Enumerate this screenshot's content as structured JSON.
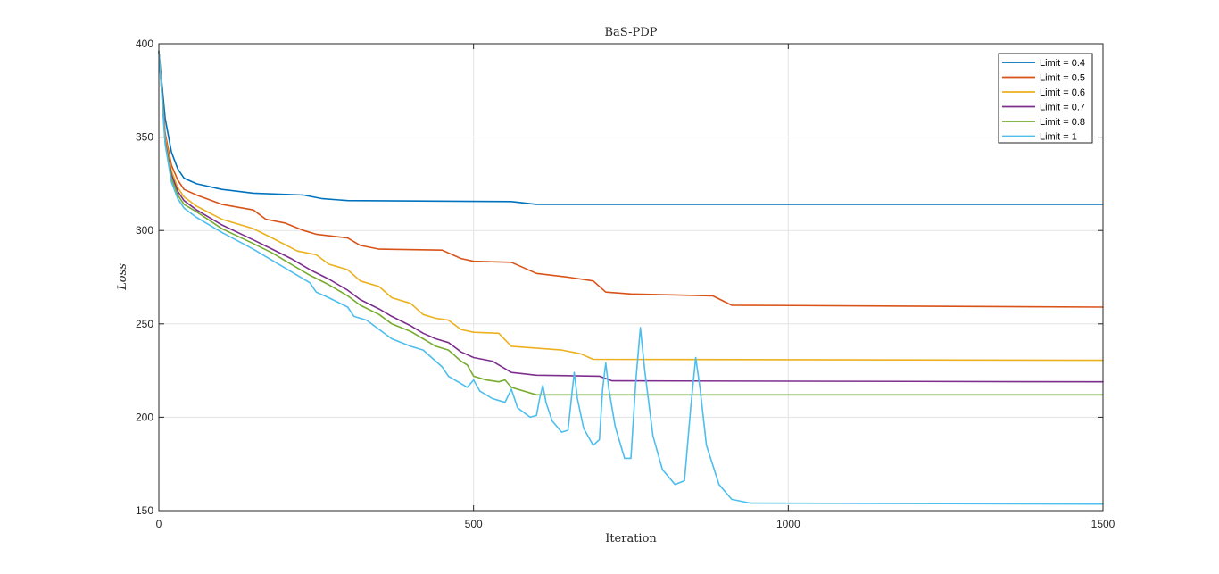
{
  "chart_data": {
    "type": "line",
    "title": "BaS-PDP",
    "xlabel": "Iteration",
    "ylabel": "Loss",
    "xlim": [
      0,
      1500
    ],
    "ylim": [
      150,
      400
    ],
    "xticks": [
      0,
      500,
      1000,
      1500
    ],
    "yticks": [
      150,
      200,
      250,
      300,
      350,
      400
    ],
    "grid": true,
    "legend_position": "top-right",
    "series": [
      {
        "name": "Limit = 0.4",
        "color": "#0072BD",
        "points": [
          [
            0,
            396
          ],
          [
            10,
            360
          ],
          [
            20,
            342
          ],
          [
            30,
            333
          ],
          [
            40,
            328
          ],
          [
            60,
            325
          ],
          [
            100,
            322
          ],
          [
            150,
            320
          ],
          [
            230,
            319
          ],
          [
            260,
            317
          ],
          [
            300,
            316
          ],
          [
            560,
            315.5
          ],
          [
            600,
            314
          ],
          [
            650,
            314
          ],
          [
            1500,
            314
          ]
        ]
      },
      {
        "name": "Limit = 0.5",
        "color": "#D95319",
        "points": [
          [
            0,
            396
          ],
          [
            10,
            352
          ],
          [
            20,
            335
          ],
          [
            30,
            327
          ],
          [
            40,
            322
          ],
          [
            60,
            319
          ],
          [
            100,
            314
          ],
          [
            150,
            311
          ],
          [
            170,
            306
          ],
          [
            200,
            304
          ],
          [
            230,
            300
          ],
          [
            250,
            298
          ],
          [
            300,
            296
          ],
          [
            320,
            292
          ],
          [
            350,
            290
          ],
          [
            450,
            289.5
          ],
          [
            480,
            285
          ],
          [
            500,
            283.5
          ],
          [
            560,
            283
          ],
          [
            600,
            277
          ],
          [
            650,
            275
          ],
          [
            690,
            273
          ],
          [
            710,
            267
          ],
          [
            750,
            266
          ],
          [
            880,
            265
          ],
          [
            910,
            260
          ],
          [
            1500,
            259
          ]
        ]
      },
      {
        "name": "Limit = 0.6",
        "color": "#EDB120",
        "points": [
          [
            0,
            396
          ],
          [
            10,
            350
          ],
          [
            20,
            332
          ],
          [
            30,
            323
          ],
          [
            40,
            318
          ],
          [
            60,
            313
          ],
          [
            100,
            306
          ],
          [
            150,
            301
          ],
          [
            180,
            296
          ],
          [
            220,
            289
          ],
          [
            250,
            287
          ],
          [
            270,
            282
          ],
          [
            300,
            279
          ],
          [
            320,
            273
          ],
          [
            350,
            270
          ],
          [
            370,
            264
          ],
          [
            400,
            261
          ],
          [
            420,
            255
          ],
          [
            440,
            253
          ],
          [
            460,
            252
          ],
          [
            480,
            247
          ],
          [
            500,
            245.5
          ],
          [
            540,
            245
          ],
          [
            560,
            238
          ],
          [
            640,
            236
          ],
          [
            670,
            234
          ],
          [
            690,
            231
          ],
          [
            1500,
            230.5
          ]
        ]
      },
      {
        "name": "Limit = 0.7",
        "color": "#7E2F8E",
        "points": [
          [
            0,
            396
          ],
          [
            10,
            348
          ],
          [
            20,
            330
          ],
          [
            30,
            321
          ],
          [
            40,
            316
          ],
          [
            60,
            311
          ],
          [
            100,
            303
          ],
          [
            150,
            295
          ],
          [
            180,
            290
          ],
          [
            210,
            285
          ],
          [
            240,
            279
          ],
          [
            270,
            274
          ],
          [
            300,
            268
          ],
          [
            320,
            263
          ],
          [
            350,
            258
          ],
          [
            370,
            254
          ],
          [
            400,
            249
          ],
          [
            420,
            245
          ],
          [
            440,
            242
          ],
          [
            460,
            240
          ],
          [
            480,
            235
          ],
          [
            500,
            232
          ],
          [
            530,
            230
          ],
          [
            560,
            224
          ],
          [
            600,
            222.5
          ],
          [
            700,
            222
          ],
          [
            720,
            219.5
          ],
          [
            1500,
            219
          ]
        ]
      },
      {
        "name": "Limit = 0.8",
        "color": "#77AC30",
        "points": [
          [
            0,
            396
          ],
          [
            10,
            347
          ],
          [
            20,
            328
          ],
          [
            30,
            319
          ],
          [
            40,
            314
          ],
          [
            60,
            310
          ],
          [
            100,
            301
          ],
          [
            150,
            293
          ],
          [
            180,
            288
          ],
          [
            210,
            282
          ],
          [
            240,
            276
          ],
          [
            270,
            271
          ],
          [
            300,
            265
          ],
          [
            320,
            260
          ],
          [
            350,
            255
          ],
          [
            370,
            250
          ],
          [
            400,
            246
          ],
          [
            420,
            242
          ],
          [
            440,
            238
          ],
          [
            460,
            236
          ],
          [
            480,
            230
          ],
          [
            490,
            228
          ],
          [
            500,
            222
          ],
          [
            520,
            220
          ],
          [
            540,
            219
          ],
          [
            550,
            220
          ],
          [
            560,
            216
          ],
          [
            600,
            212
          ],
          [
            1500,
            212
          ]
        ]
      },
      {
        "name": "Limit = 1",
        "color": "#4DBEEE",
        "points": [
          [
            0,
            396
          ],
          [
            10,
            346
          ],
          [
            20,
            326
          ],
          [
            30,
            317
          ],
          [
            40,
            312
          ],
          [
            60,
            307
          ],
          [
            100,
            299
          ],
          [
            150,
            290
          ],
          [
            180,
            284
          ],
          [
            210,
            278
          ],
          [
            240,
            272
          ],
          [
            250,
            267
          ],
          [
            270,
            264
          ],
          [
            300,
            259
          ],
          [
            310,
            254
          ],
          [
            330,
            252
          ],
          [
            350,
            247
          ],
          [
            370,
            242
          ],
          [
            400,
            238
          ],
          [
            420,
            236
          ],
          [
            440,
            230
          ],
          [
            450,
            227
          ],
          [
            460,
            222
          ],
          [
            480,
            218
          ],
          [
            490,
            216
          ],
          [
            500,
            220
          ],
          [
            510,
            214
          ],
          [
            530,
            210
          ],
          [
            550,
            208
          ],
          [
            560,
            215
          ],
          [
            570,
            205
          ],
          [
            590,
            200
          ],
          [
            600,
            201
          ],
          [
            605,
            210
          ],
          [
            610,
            217
          ],
          [
            615,
            208
          ],
          [
            625,
            198
          ],
          [
            640,
            192
          ],
          [
            650,
            193
          ],
          [
            657,
            215
          ],
          [
            660,
            224
          ],
          [
            665,
            210
          ],
          [
            675,
            194
          ],
          [
            690,
            185
          ],
          [
            700,
            188
          ],
          [
            705,
            215
          ],
          [
            710,
            229
          ],
          [
            715,
            215
          ],
          [
            725,
            195
          ],
          [
            740,
            178
          ],
          [
            750,
            178
          ],
          [
            758,
            220
          ],
          [
            765,
            248
          ],
          [
            772,
            225
          ],
          [
            785,
            190
          ],
          [
            800,
            172
          ],
          [
            820,
            164
          ],
          [
            835,
            166
          ],
          [
            845,
            205
          ],
          [
            853,
            232
          ],
          [
            860,
            215
          ],
          [
            870,
            185
          ],
          [
            890,
            164
          ],
          [
            910,
            156
          ],
          [
            940,
            154
          ],
          [
            1500,
            153.5
          ]
        ]
      }
    ]
  }
}
